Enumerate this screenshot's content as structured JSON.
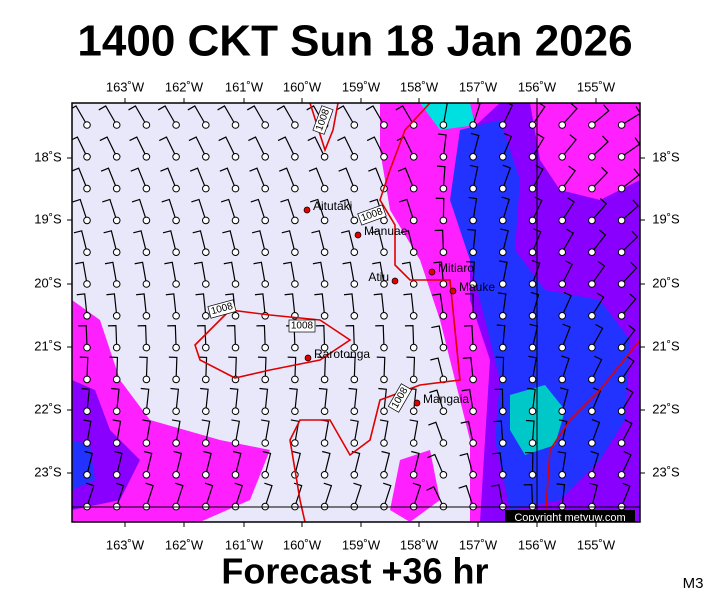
{
  "title": "1400 CKT Sun 18 Jan 2026",
  "longitudes": [
    "163˚W",
    "162˚W",
    "161˚W",
    "160˚W",
    "159˚W",
    "158˚W",
    "157˚W",
    "156˚W",
    "155˚W"
  ],
  "latitudes": [
    "18˚S",
    "19˚S",
    "20˚S",
    "21˚S",
    "22˚S",
    "23˚S"
  ],
  "places": [
    "Aitutaki",
    "Manuae",
    "Mitiaro",
    "Atiu",
    "Mauke",
    "Rarotonga",
    "Mangaia"
  ],
  "isobar_labels": [
    "1008",
    "1008",
    "1008",
    "1008",
    "1008"
  ],
  "copyright": "Copyright metvuw.com",
  "footer": "Forecast +36 hr",
  "code": "M3"
}
